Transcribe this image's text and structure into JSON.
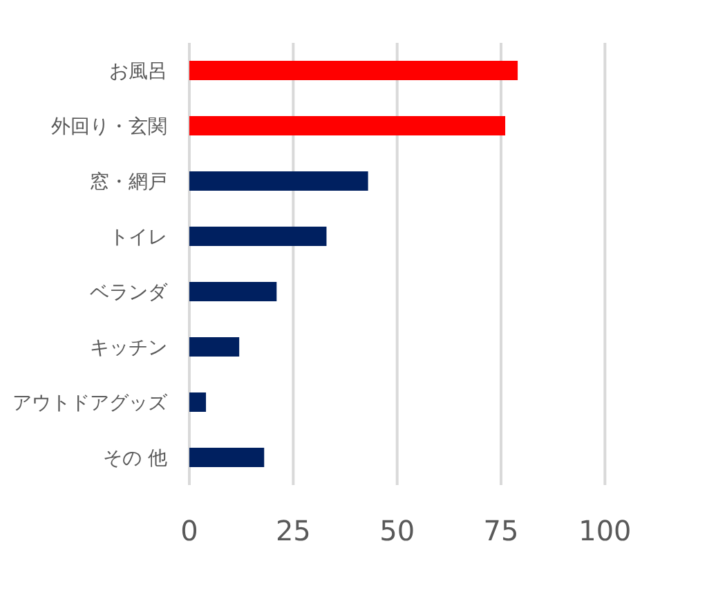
{
  "chart_data": {
    "type": "bar",
    "orientation": "horizontal",
    "categories": [
      "お風呂",
      "外回り・玄関",
      "窓・網戸",
      "トイレ",
      "ベランダ",
      "キッチン",
      "アウトドアグッズ",
      "その 他"
    ],
    "values": [
      79,
      76,
      43,
      33,
      21,
      12,
      4,
      18
    ],
    "colors": [
      "#ff0000",
      "#ff0000",
      "#002060",
      "#002060",
      "#002060",
      "#002060",
      "#002060",
      "#002060"
    ],
    "xlim": [
      0,
      100
    ],
    "xticks": [
      0,
      25,
      50,
      75,
      100
    ],
    "grid": "x"
  }
}
